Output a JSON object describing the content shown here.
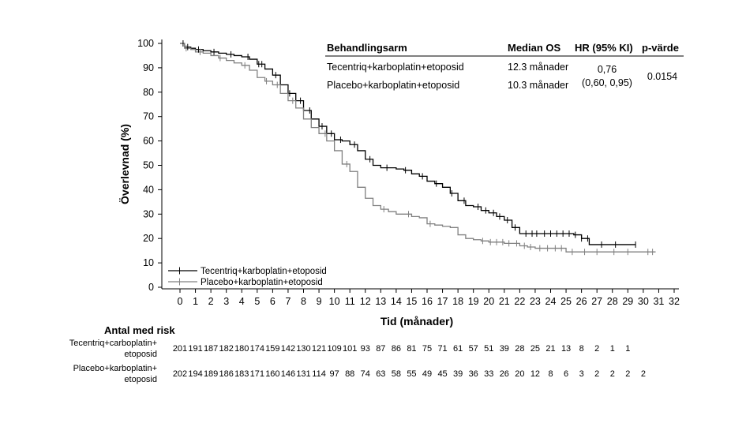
{
  "chart_data": {
    "type": "line",
    "subtype": "kaplan-meier",
    "xlabel": "Tid (månader)",
    "ylabel": "Överlevnad (%)",
    "xlim": [
      0,
      32
    ],
    "ylim": [
      0,
      100
    ],
    "xticks": [
      "0",
      "1",
      "2",
      "3",
      "4",
      "5",
      "6",
      "7",
      "8",
      "9",
      "10",
      "11",
      "12",
      "13",
      "14",
      "15",
      "16",
      "17",
      "18",
      "19",
      "20",
      "21",
      "22",
      "23",
      "24",
      "25",
      "26",
      "27",
      "28",
      "29",
      "30",
      "31",
      "32"
    ],
    "yticks": [
      "0",
      "10",
      "20",
      "30",
      "40",
      "50",
      "60",
      "70",
      "80",
      "90",
      "100"
    ],
    "legend_position": "bottom-left",
    "series": [
      {
        "name": "Tecentriq+karboplatin+etoposid",
        "color": "#000000",
        "points": [
          [
            0,
            100
          ],
          [
            0.3,
            98.5
          ],
          [
            0.7,
            98
          ],
          [
            1,
            97.5
          ],
          [
            1.5,
            97
          ],
          [
            2,
            96.5
          ],
          [
            2.5,
            96
          ],
          [
            3,
            95.5
          ],
          [
            3.5,
            95
          ],
          [
            4,
            94.5
          ],
          [
            4.5,
            93.5
          ],
          [
            5,
            91.5
          ],
          [
            5.5,
            89.5
          ],
          [
            6,
            87
          ],
          [
            6.5,
            83
          ],
          [
            7,
            79.5
          ],
          [
            7.5,
            76.5
          ],
          [
            8,
            72.5
          ],
          [
            8.5,
            69
          ],
          [
            9,
            66
          ],
          [
            9.5,
            63
          ],
          [
            10,
            60.5
          ],
          [
            10.5,
            60
          ],
          [
            11,
            58.5
          ],
          [
            11.5,
            56
          ],
          [
            12,
            52.5
          ],
          [
            12.5,
            50
          ],
          [
            13,
            49
          ],
          [
            14,
            48.5
          ],
          [
            14.5,
            48
          ],
          [
            15,
            46.5
          ],
          [
            15.5,
            45.5
          ],
          [
            16,
            43.5
          ],
          [
            16.5,
            42.5
          ],
          [
            17,
            41
          ],
          [
            17.5,
            38.5
          ],
          [
            18,
            35.5
          ],
          [
            18.5,
            33.5
          ],
          [
            19,
            33
          ],
          [
            19.5,
            31.5
          ],
          [
            20,
            30.5
          ],
          [
            20.5,
            29
          ],
          [
            21,
            27.5
          ],
          [
            21.5,
            24.5
          ],
          [
            22,
            22
          ],
          [
            23,
            22
          ],
          [
            24,
            22
          ],
          [
            25,
            22
          ],
          [
            25.5,
            21.5
          ],
          [
            26,
            20
          ],
          [
            26.5,
            17.5
          ],
          [
            27.5,
            17.5
          ],
          [
            28.5,
            17.5
          ],
          [
            29.5,
            17.5
          ]
        ],
        "censor": [
          0.2,
          0.5,
          1.2,
          2.2,
          3.3,
          4.4,
          5.1,
          5.3,
          6.2,
          7.1,
          7.8,
          8.4,
          9.2,
          9.8,
          10.4,
          11.3,
          12.3,
          13.4,
          14.6,
          15.7,
          16.6,
          17.6,
          18.4,
          19.3,
          19.8,
          20.3,
          20.7,
          21.2,
          21.7,
          22.4,
          22.8,
          23.1,
          23.6,
          24.0,
          24.4,
          24.8,
          25.2,
          25.6,
          26.0,
          26.4,
          27.3,
          28.2,
          29.5
        ]
      },
      {
        "name": "Placebo+karboplatin+etoposid",
        "color": "#808080",
        "points": [
          [
            0,
            100
          ],
          [
            0.3,
            98
          ],
          [
            0.7,
            97.5
          ],
          [
            1,
            96.5
          ],
          [
            1.5,
            96
          ],
          [
            2,
            95
          ],
          [
            2.5,
            94
          ],
          [
            3,
            93
          ],
          [
            3.5,
            92
          ],
          [
            4,
            91
          ],
          [
            4.5,
            89
          ],
          [
            5,
            86
          ],
          [
            5.5,
            84.5
          ],
          [
            6,
            83
          ],
          [
            6.5,
            79.5
          ],
          [
            7,
            76.5
          ],
          [
            7.5,
            73.5
          ],
          [
            8,
            69
          ],
          [
            8.5,
            65.5
          ],
          [
            9,
            63
          ],
          [
            9.5,
            60
          ],
          [
            10,
            56
          ],
          [
            10.5,
            50.5
          ],
          [
            11,
            47.5
          ],
          [
            11.5,
            41
          ],
          [
            12,
            36.5
          ],
          [
            12.5,
            33.5
          ],
          [
            13,
            32
          ],
          [
            13.5,
            31
          ],
          [
            14,
            30
          ],
          [
            15,
            29
          ],
          [
            15.5,
            28.5
          ],
          [
            16,
            26
          ],
          [
            16.5,
            25.5
          ],
          [
            17,
            25
          ],
          [
            17.5,
            24.5
          ],
          [
            18,
            21.5
          ],
          [
            18.5,
            20
          ],
          [
            19,
            19.5
          ],
          [
            19.5,
            19
          ],
          [
            20,
            18.5
          ],
          [
            21,
            18
          ],
          [
            22,
            17
          ],
          [
            22.5,
            16.5
          ],
          [
            23,
            16
          ],
          [
            24,
            16
          ],
          [
            24.5,
            16
          ],
          [
            25,
            14.5
          ],
          [
            26,
            14.5
          ],
          [
            27,
            14.5
          ],
          [
            28,
            14.5
          ],
          [
            29,
            14.5
          ],
          [
            30,
            14.5
          ],
          [
            30.8,
            14.5
          ]
        ],
        "censor": [
          0.4,
          1.3,
          2.6,
          4.2,
          5.6,
          6.3,
          7.3,
          9.4,
          10.8,
          13.2,
          14.8,
          16.2,
          19.6,
          20.1,
          20.5,
          20.9,
          21.3,
          21.8,
          22.3,
          22.7,
          23.3,
          23.8,
          24.3,
          24.7,
          25.4,
          26.2,
          27.0,
          28.1,
          29.0,
          30.3,
          30.6
        ]
      }
    ],
    "annotation_table": {
      "headers": [
        "Behandlingsarm",
        "Median OS",
        "HR (95% KI)",
        "p-värde"
      ],
      "rows": [
        {
          "arm": "Tecentriq+karboplatin+etoposid",
          "median": "12.3 månader"
        },
        {
          "arm": "Placebo+karboplatin+etoposid",
          "median": "10.3 månader"
        }
      ],
      "hr": "0,76",
      "ci": "(0,60, 0,95)",
      "p": "0.0154"
    },
    "risk_table": {
      "title": "Antal med risk",
      "rows": [
        {
          "label_line1": "Tecentriq+carboplatin+",
          "label_line2": "etoposid",
          "values": [
            "201",
            "191",
            "187",
            "182",
            "180",
            "174",
            "159",
            "142",
            "130",
            "121",
            "109",
            "101",
            "93",
            "87",
            "86",
            "81",
            "75",
            "71",
            "61",
            "57",
            "51",
            "39",
            "28",
            "25",
            "21",
            "13",
            "8",
            "2",
            "1",
            "1",
            "",
            ""
          ]
        },
        {
          "label_line1": "Placebo+karboplatin+",
          "label_line2": "etoposid",
          "values": [
            "202",
            "194",
            "189",
            "186",
            "183",
            "171",
            "160",
            "146",
            "131",
            "114",
            "97",
            "88",
            "74",
            "63",
            "58",
            "55",
            "49",
            "45",
            "39",
            "36",
            "33",
            "26",
            "20",
            "12",
            "8",
            "6",
            "3",
            "2",
            "2",
            "2",
            "2",
            ""
          ]
        }
      ]
    }
  }
}
